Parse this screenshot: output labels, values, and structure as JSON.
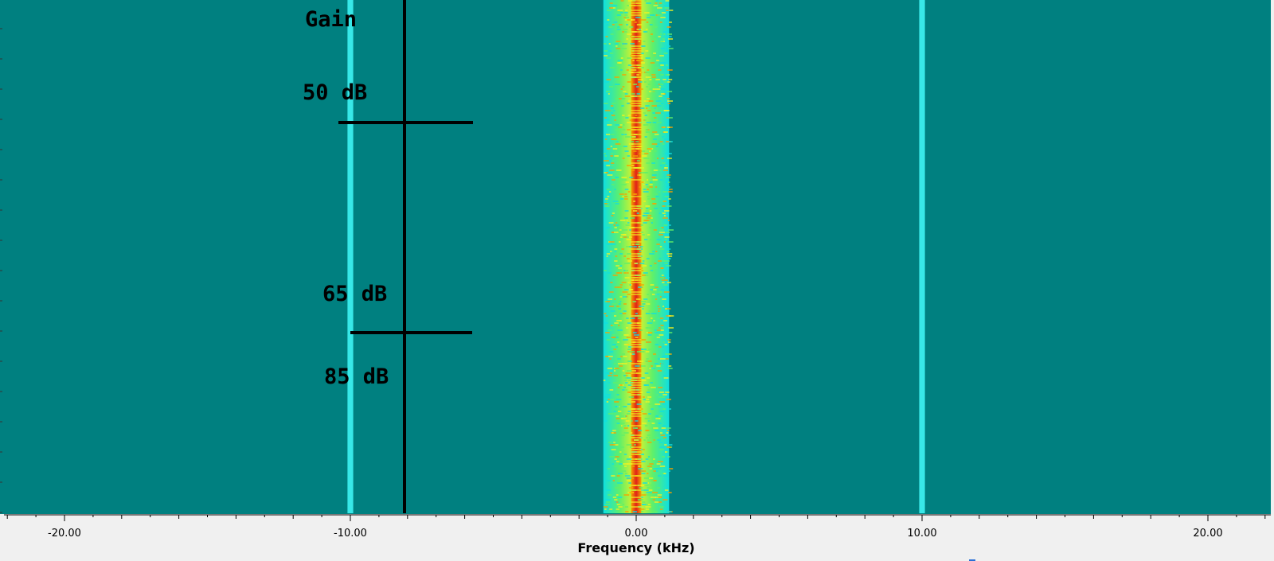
{
  "chart_data": {
    "type": "heatmap",
    "description_kind": "waterfall",
    "colors": {
      "background": "#008080",
      "noise_low": "#0fe0e0",
      "noise_mid": "#5ff06a",
      "noise_high": "#f2f21f",
      "carrier_core": "#e0201a",
      "carrier_edge": "#f5a300",
      "spur": "#38e8e8",
      "annotation": "#000000",
      "frame": "#f0f0f0"
    },
    "xlabel": "Frequency (kHz)",
    "xlim": [
      -22.0,
      22.0
    ],
    "x_ticks": [
      -20.0,
      -10.0,
      0.0,
      10.0,
      20.0
    ],
    "x_tick_labels": [
      "-20.00",
      "-10.00",
      "0.00",
      "10.00",
      "20.00"
    ],
    "x_minor_step": 2.0,
    "signals": [
      {
        "center_khz": 0.0,
        "carrier_halfwidth_khz": 0.18,
        "noise_halfwidth_khz": 1.15
      },
      {
        "center_khz": -10.0,
        "spur_halfwidth_khz": 0.1
      },
      {
        "center_khz": 10.0,
        "spur_halfwidth_khz": 0.1
      }
    ],
    "annotations": {
      "gain_label": "Gain",
      "markers": [
        {
          "label": "50 dB"
        },
        {
          "label": "65 dB"
        },
        {
          "label": "85 dB"
        }
      ]
    }
  }
}
